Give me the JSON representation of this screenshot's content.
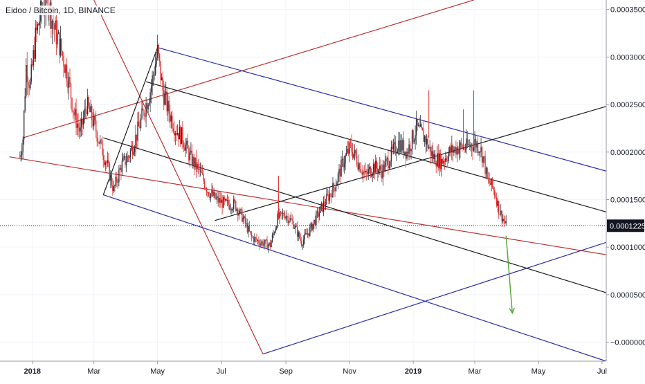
{
  "symbol_title": "Eidoo / Bitcoin, 1D, BINANCE",
  "colors": {
    "background": "#ffffff",
    "grid": "#f0f3fa",
    "up_candle": "#2e2e3a",
    "down_candle": "#e03030",
    "fork_blue": "#2a2aa8",
    "fork_red": "#c03030",
    "fork_black": "#1a1a1a",
    "projection_arrow": "#5aa83c",
    "price_label_bg": "#131722",
    "price_label_text": "#ffffff",
    "axis_text": "#131722"
  },
  "chart_data": {
    "type": "candlestick",
    "title": "Eidoo / Bitcoin, 1D, BINANCE",
    "timeframe": "1D",
    "exchange": "BINANCE",
    "ylim": [
      -2e-05,
      0.00036
    ],
    "y_ticks": [
      {
        "value": 0.00035,
        "label": "0.0003500"
      },
      {
        "value": 0.0003,
        "label": "0.0003000"
      },
      {
        "value": 0.00025,
        "label": "0.0002500"
      },
      {
        "value": 0.0002,
        "label": "0.0002000"
      },
      {
        "value": 0.00015,
        "label": "0.0001500"
      },
      {
        "value": 0.0001,
        "label": "0.0001000"
      },
      {
        "value": 5e-05,
        "label": "0.0000500"
      },
      {
        "value": 0.0,
        "label": "−0.0000000"
      }
    ],
    "x_range": [
      "2017-12-01",
      "2019-07-05"
    ],
    "x_ticks": [
      {
        "date": "2018-01-01",
        "label": "2018",
        "bold": true
      },
      {
        "date": "2018-03-01",
        "label": "Mar",
        "bold": false
      },
      {
        "date": "2018-05-01",
        "label": "May",
        "bold": false
      },
      {
        "date": "2018-07-01",
        "label": "Jul",
        "bold": false
      },
      {
        "date": "2018-09-01",
        "label": "Sep",
        "bold": false
      },
      {
        "date": "2018-11-01",
        "label": "Nov",
        "bold": false
      },
      {
        "date": "2019-01-01",
        "label": "2019",
        "bold": true
      },
      {
        "date": "2019-03-01",
        "label": "Mar",
        "bold": false
      },
      {
        "date": "2019-05-01",
        "label": "May",
        "bold": false
      },
      {
        "date": "2019-07-01",
        "label": "Jul",
        "bold": false
      }
    ],
    "last_price": {
      "value": 0.0001225,
      "label": "0.0001225"
    },
    "price_path": [
      [
        "2017-12-20",
        0.000195
      ],
      [
        "2017-12-23",
        0.000215
      ],
      [
        "2017-12-26",
        0.00029
      ],
      [
        "2017-12-30",
        0.00027
      ],
      [
        "2018-01-04",
        0.00032
      ],
      [
        "2018-01-10",
        0.00035
      ],
      [
        "2018-01-16",
        0.00036
      ],
      [
        "2018-01-22",
        0.00033
      ],
      [
        "2018-01-28",
        0.00031
      ],
      [
        "2018-02-04",
        0.00028
      ],
      [
        "2018-02-10",
        0.00024
      ],
      [
        "2018-02-16",
        0.00022
      ],
      [
        "2018-02-22",
        0.00025
      ],
      [
        "2018-03-01",
        0.00023
      ],
      [
        "2018-03-08",
        0.000205
      ],
      [
        "2018-03-14",
        0.000185
      ],
      [
        "2018-03-20",
        0.00016
      ],
      [
        "2018-03-27",
        0.000185
      ],
      [
        "2018-04-03",
        0.000195
      ],
      [
        "2018-04-10",
        0.000215
      ],
      [
        "2018-04-17",
        0.00024
      ],
      [
        "2018-04-24",
        0.000265
      ],
      [
        "2018-05-01",
        0.000305
      ],
      [
        "2018-05-06",
        0.000265
      ],
      [
        "2018-05-11",
        0.000245
      ],
      [
        "2018-05-18",
        0.000225
      ],
      [
        "2018-05-25",
        0.000215
      ],
      [
        "2018-06-01",
        0.000195
      ],
      [
        "2018-06-10",
        0.00018
      ],
      [
        "2018-06-18",
        0.00016
      ],
      [
        "2018-06-26",
        0.00015
      ],
      [
        "2018-07-05",
        0.000145
      ],
      [
        "2018-07-14",
        0.000145
      ],
      [
        "2018-07-22",
        0.00013
      ],
      [
        "2018-07-30",
        0.00011
      ],
      [
        "2018-08-08",
        0.000105
      ],
      [
        "2018-08-17",
        0.000102
      ],
      [
        "2018-08-24",
        0.00013
      ],
      [
        "2018-08-31",
        0.000135
      ],
      [
        "2018-09-08",
        0.000125
      ],
      [
        "2018-09-16",
        0.000105
      ],
      [
        "2018-09-24",
        0.000118
      ],
      [
        "2018-10-02",
        0.000135
      ],
      [
        "2018-10-10",
        0.00015
      ],
      [
        "2018-10-18",
        0.000165
      ],
      [
        "2018-10-26",
        0.00019
      ],
      [
        "2018-11-02",
        0.000205
      ],
      [
        "2018-11-09",
        0.00019
      ],
      [
        "2018-11-16",
        0.000175
      ],
      [
        "2018-11-24",
        0.000185
      ],
      [
        "2018-12-02",
        0.00018
      ],
      [
        "2018-12-10",
        0.000195
      ],
      [
        "2018-12-18",
        0.00021
      ],
      [
        "2018-12-26",
        0.0002
      ],
      [
        "2019-01-04",
        0.000225
      ],
      [
        "2019-01-12",
        0.000215
      ],
      [
        "2019-01-20",
        0.000195
      ],
      [
        "2019-01-28",
        0.00019
      ],
      [
        "2019-02-05",
        0.0002
      ],
      [
        "2019-02-13",
        0.000205
      ],
      [
        "2019-02-21",
        0.000205
      ],
      [
        "2019-03-01",
        0.00021
      ],
      [
        "2019-03-06",
        0.000205
      ],
      [
        "2019-03-10",
        0.00019
      ],
      [
        "2019-03-13",
        0.00017
      ],
      [
        "2019-03-17",
        0.000165
      ],
      [
        "2019-03-21",
        0.000155
      ],
      [
        "2019-03-24",
        0.00014
      ],
      [
        "2019-03-28",
        0.00013
      ],
      [
        "2019-03-31",
        0.0001225
      ]
    ],
    "wick_spikes": [
      {
        "date": "2018-08-25",
        "high": 0.000175
      },
      {
        "date": "2019-01-16",
        "high": 0.000265
      },
      {
        "date": "2019-02-28",
        "high": 0.000265
      },
      {
        "date": "2019-02-18",
        "high": 0.000245
      }
    ],
    "drawings": {
      "fork_blue": [
        [
          [
            "2018-05-01",
            0.00031
          ],
          [
            "2019-07-05",
            0.00018
          ]
        ],
        [
          [
            "2018-03-10",
            0.000155
          ],
          [
            "2019-07-05",
            -2e-05
          ]
        ],
        [
          [
            "2018-08-10",
            -1.25e-05
          ],
          [
            "2019-07-05",
            0.000105
          ]
        ]
      ],
      "fork_red": [
        [
          [
            "2017-12-23",
            0.000215
          ],
          [
            "2019-02-28",
            0.00036
          ]
        ],
        [
          [
            "2017-12-10",
            0.000195
          ],
          [
            "2019-07-05",
            9.2e-05
          ]
        ],
        [
          [
            "2018-03-01",
            0.00036
          ],
          [
            "2018-08-10",
            -1.25e-05
          ]
        ]
      ],
      "fork_black": [
        [
          [
            "2018-04-20",
            0.000274
          ],
          [
            "2019-07-05",
            0.000137
          ]
        ],
        [
          [
            "2018-03-10",
            0.000215
          ],
          [
            "2019-07-05",
            5.2e-05
          ]
        ],
        [
          [
            "2018-06-25",
            0.000128
          ],
          [
            "2019-07-05",
            0.000248
          ]
        ],
        [
          [
            "2018-03-10",
            0.000155
          ],
          [
            "2018-05-01",
            0.00031
          ]
        ]
      ],
      "projection_arrow": [
        [
          "2019-03-31",
          0.000112
        ],
        [
          "2019-04-06",
          3.05e-05
        ]
      ]
    }
  }
}
